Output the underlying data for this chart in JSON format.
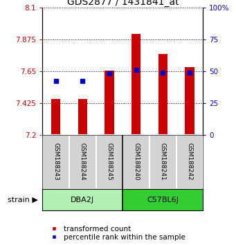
{
  "title": "GDS2877 / 1431841_at",
  "samples": [
    "GSM188243",
    "GSM188244",
    "GSM188245",
    "GSM188240",
    "GSM188241",
    "GSM188242"
  ],
  "red_bar_values": [
    7.455,
    7.455,
    7.655,
    7.91,
    7.77,
    7.68
  ],
  "blue_marker_values": [
    7.578,
    7.578,
    7.635,
    7.657,
    7.64,
    7.64
  ],
  "y_min": 7.2,
  "y_max": 8.1,
  "y_ticks": [
    7.2,
    7.425,
    7.65,
    7.875,
    8.1
  ],
  "y_tick_labels": [
    "7.2",
    "7.425",
    "7.65",
    "7.875",
    "8.1"
  ],
  "right_y_ticks": [
    0,
    25,
    50,
    75,
    100
  ],
  "right_y_tick_labels": [
    "0",
    "25",
    "50",
    "75",
    "100%"
  ],
  "groups": [
    {
      "label": "DBA2J",
      "indices": [
        0,
        1,
        2
      ],
      "color": "#b3f0b3"
    },
    {
      "label": "C57BL6J",
      "indices": [
        3,
        4,
        5
      ],
      "color": "#33cc33"
    }
  ],
  "strain_label": "strain ▶",
  "bar_color": "#cc0000",
  "marker_color": "#0000cc",
  "bar_width": 0.35,
  "marker_size": 5,
  "title_fontsize": 10,
  "tick_fontsize": 7.5,
  "sample_fontsize": 6.5,
  "group_fontsize": 8,
  "legend_fontsize": 7.5,
  "legend_red": "transformed count",
  "legend_blue": "percentile rank within the sample"
}
